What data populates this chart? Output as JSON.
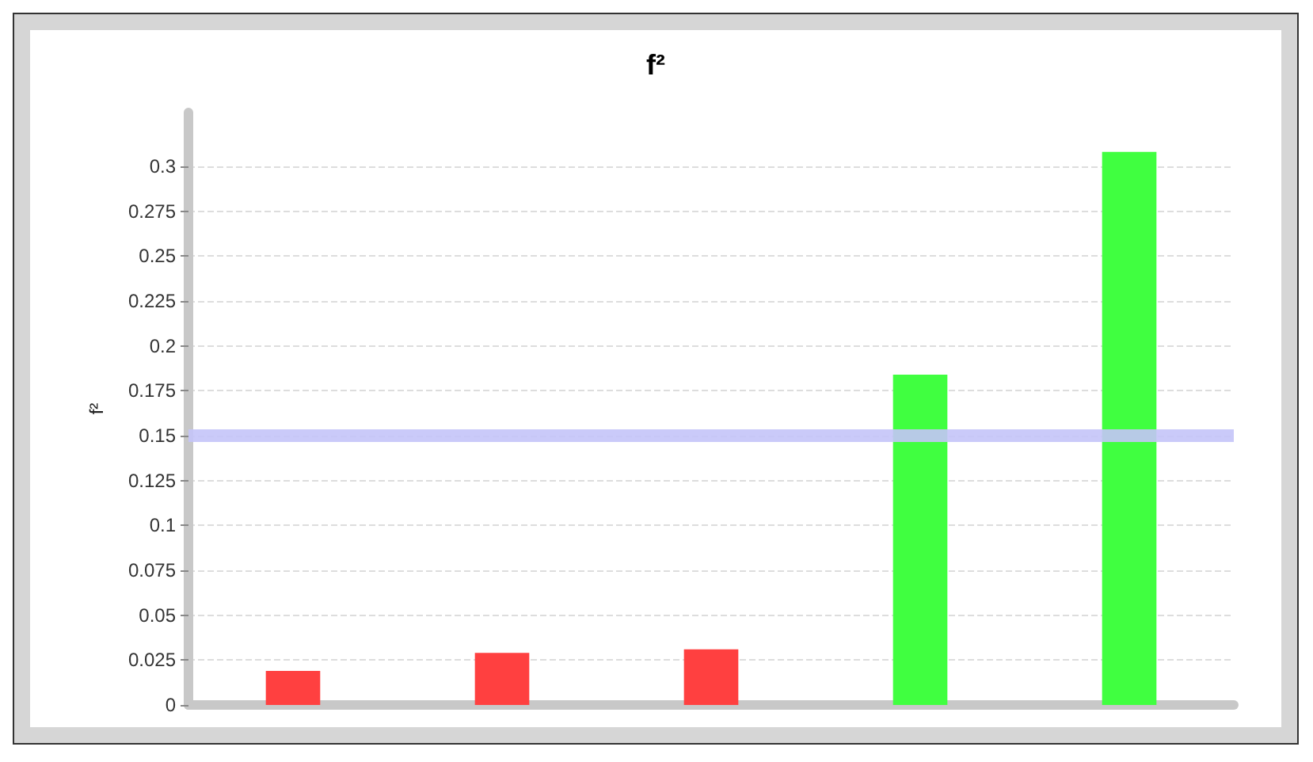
{
  "chart_data": {
    "type": "bar",
    "title": "f²",
    "ylabel": "f²",
    "categories": [
      null,
      null,
      null,
      null,
      null
    ],
    "values": [
      0.019,
      0.029,
      0.031,
      0.184,
      0.308
    ],
    "colors": [
      "#ff4040",
      "#ff4040",
      "#ff4040",
      "#40ff40",
      "#40ff40"
    ],
    "ylim": [
      0,
      0.33
    ],
    "yticks": [
      0,
      0.025,
      0.05,
      0.075,
      0.1,
      0.125,
      0.15,
      0.175,
      0.2,
      0.225,
      0.25,
      0.275,
      0.3
    ],
    "grid": "y",
    "tick_labels": "y",
    "ref_lines": [
      {
        "axis": "y",
        "value": 0.15,
        "color": "#c4c4f8"
      }
    ]
  }
}
